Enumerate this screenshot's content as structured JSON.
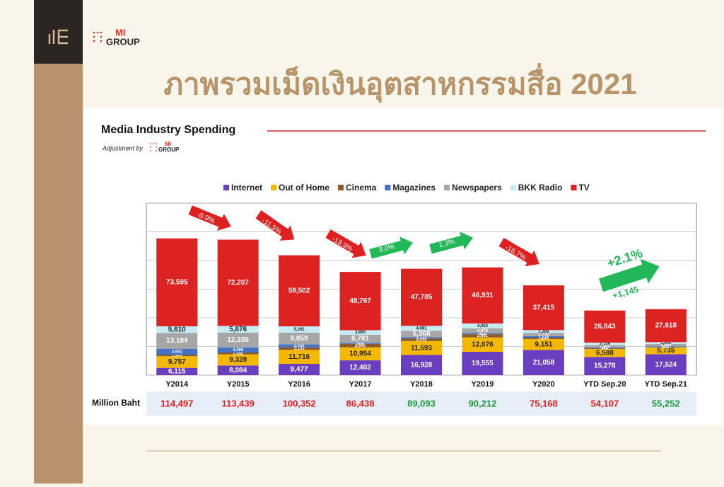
{
  "slide": {
    "title": "ภาพรวมเม็ดเงินอุตสาหกรรมสื่อ 2021",
    "logo_top": "MI",
    "logo_bottom": "GROUP"
  },
  "chart_data": {
    "type": "stacked_bar",
    "title": "Media Industry Spending",
    "subtitle": "Adjustment by",
    "subtitle_logo_top": "MI",
    "subtitle_logo_bottom": "GROUP",
    "categories": [
      "Y2014",
      "Y2015",
      "Y2016",
      "Y2017",
      "Y2018",
      "Y2019",
      "Y2020",
      "YTD Sep.20",
      "YTD Sep.21"
    ],
    "series": [
      {
        "name": "Internet",
        "color": "#6a3fbf",
        "values": [
          6115,
          8084,
          9477,
          12402,
          16928,
          19555,
          21058,
          15278,
          17524
        ],
        "value_labels": [
          "6,115",
          "8,084",
          "9,477",
          "12,402",
          "16,928",
          "19,555",
          "21,058",
          "15,278",
          "17,524"
        ]
      },
      {
        "name": "Out of Home",
        "color": "#f5b800",
        "values": [
          9757,
          9328,
          11716,
          10954,
          11593,
          12076,
          9151,
          6588,
          5735
        ],
        "value_labels": [
          "9,757",
          "9,328",
          "11,716",
          "10,954",
          "11,593",
          "12,076",
          "9,151",
          "6,588",
          "5,735"
        ]
      },
      {
        "name": "Cinema",
        "color": "#8b5a2b",
        "values": [
          1305,
          1540,
          2100,
          2845,
          2215,
          2651,
          1200,
          600,
          250
        ],
        "value_labels": [
          "1,305",
          "1,540",
          "2,100",
          "2,845",
          "2,215",
          "2,651",
          "1,200",
          "600",
          "250"
        ]
      },
      {
        "name": "Magazines",
        "color": "#4472c4",
        "values": [
          4931,
          4269,
          2436,
          884,
          1123,
          896,
          1226,
          691,
          600
        ],
        "value_labels": [
          "4,931",
          "4,269",
          "2,436",
          "884",
          "1,123",
          "896",
          "1,226",
          "691",
          "600"
        ]
      },
      {
        "name": "Newspapers",
        "color": "#a6a6a6",
        "values": [
          13184,
          12335,
          9859,
          6781,
          5368,
          4078,
          2730,
          1968,
          1984
        ],
        "value_labels": [
          "13,184",
          "12,335",
          "9,859",
          "6,781",
          "5,368",
          "4,078",
          "2,730",
          "1,968",
          "1,984"
        ]
      },
      {
        "name": "BKK Radio",
        "color": "#c5ecf5",
        "values": [
          5610,
          5676,
          5262,
          3805,
          4081,
          4025,
          2388,
          2139,
          1541
        ],
        "value_labels": [
          "5,610",
          "5,676",
          "5,262",
          "3,805",
          "4,081",
          "4,025",
          "2,388",
          "2,139",
          "1,541"
        ]
      },
      {
        "name": "TV",
        "color": "#dd2222",
        "values": [
          73595,
          72207,
          59502,
          48767,
          47785,
          46931,
          37415,
          26843,
          27618
        ],
        "value_labels": [
          "73,595",
          "72,207",
          "59,502",
          "48,767",
          "47,785",
          "46,931",
          "37,415",
          "26,843",
          "27,618"
        ]
      }
    ],
    "ylim": [
      0,
      144000
    ],
    "yticks": [
      0,
      24000,
      48000,
      72000,
      96000,
      120000,
      144000
    ],
    "grid": true,
    "totals_label": "Million Baht",
    "totals": [
      "114,497",
      "113,439",
      "100,352",
      "86,438",
      "89,093",
      "90,212",
      "75,168",
      "54,107",
      "55,252"
    ],
    "total_colors": [
      "#e02020",
      "#e02020",
      "#e02020",
      "#e02020",
      "#1a9a3a",
      "#1a9a3a",
      "#e02020",
      "#e02020",
      "#1a9a3a"
    ],
    "annotations": [
      {
        "text": "-0.9%",
        "color": "#e02020"
      },
      {
        "text": "-11.5%",
        "color": "#e02020"
      },
      {
        "text": "-13.9%",
        "color": "#e02020"
      },
      {
        "text": "3.0%",
        "color": "#22b857"
      },
      {
        "text": "1.3%",
        "color": "#22b857"
      },
      {
        "text": "-16.7%",
        "color": "#e02020"
      },
      {
        "text": "+2.1%",
        "color": "#22b857"
      },
      {
        "text": "+1,145",
        "color": "#22b857"
      }
    ]
  }
}
